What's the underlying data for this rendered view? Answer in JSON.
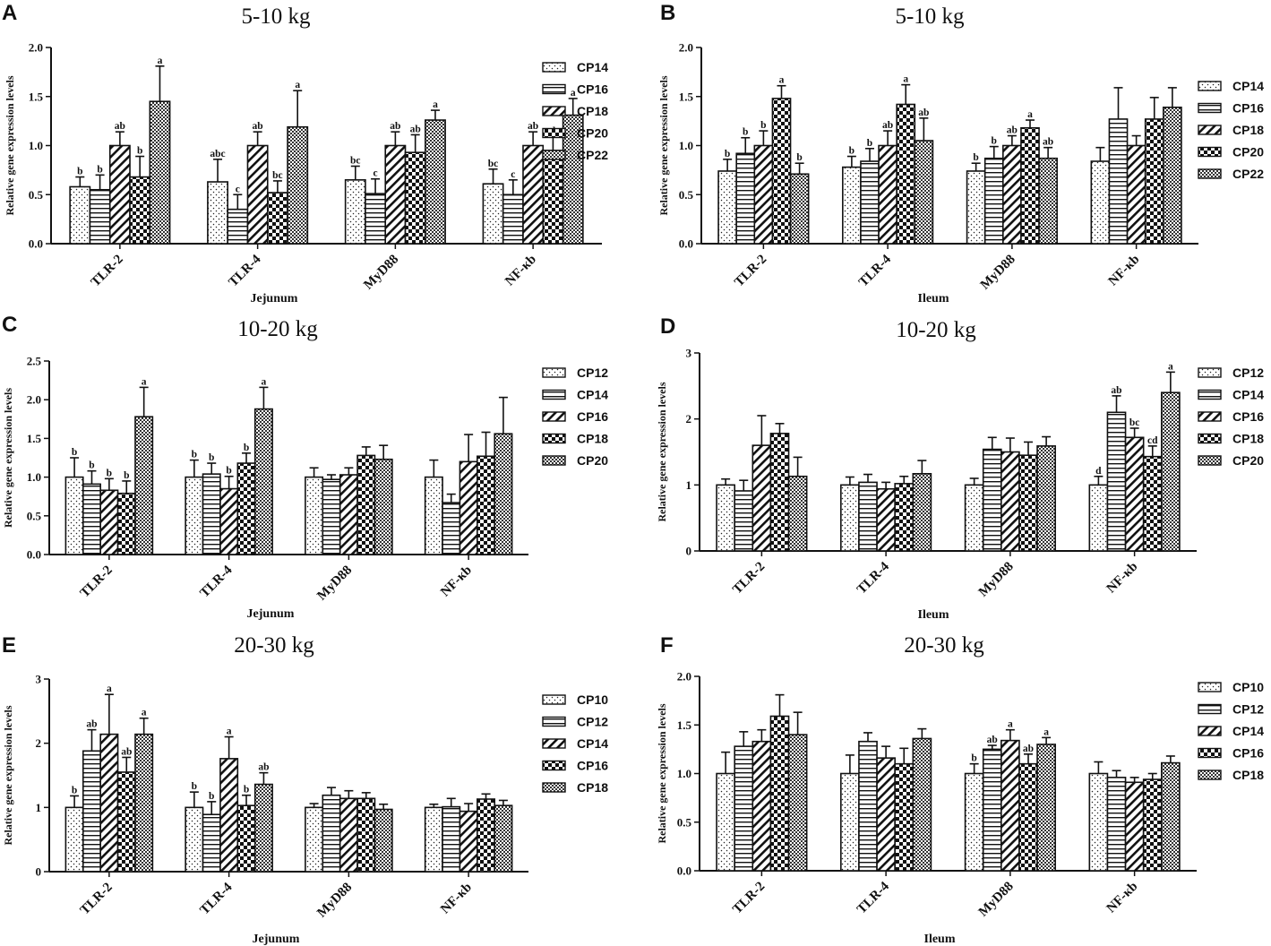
{
  "figure": {
    "chart_data": [
      {
        "panel": "A",
        "type": "bar",
        "title": "5-10 kg",
        "xlabel": "Jejunum",
        "ylabel": "Relative gene expression levels",
        "ylim": [
          0,
          2.0
        ],
        "yticks": [
          "0.0",
          "0.5",
          "1.0",
          "1.5",
          "2.0"
        ],
        "categories": [
          "TLR-2",
          "TLR-4",
          "MyD88",
          "NF-κb"
        ],
        "series": [
          {
            "name": "CP14",
            "pattern": "dots",
            "values": [
              0.58,
              0.63,
              0.65,
              0.61
            ],
            "errors": [
              0.1,
              0.23,
              0.14,
              0.15
            ],
            "letters": [
              "b",
              "abc",
              "bc",
              "bc"
            ]
          },
          {
            "name": "CP16",
            "pattern": "hlines",
            "values": [
              0.55,
              0.35,
              0.51,
              0.5
            ],
            "errors": [
              0.15,
              0.15,
              0.15,
              0.15
            ],
            "letters": [
              "b",
              "c",
              "c",
              "c"
            ]
          },
          {
            "name": "CP18",
            "pattern": "diag",
            "values": [
              1.0,
              1.0,
              1.0,
              1.0
            ],
            "errors": [
              0.14,
              0.14,
              0.14,
              0.14
            ],
            "letters": [
              "ab",
              "ab",
              "ab",
              "ab"
            ]
          },
          {
            "name": "CP20",
            "pattern": "checker",
            "values": [
              0.68,
              0.52,
              0.93,
              0.95
            ],
            "errors": [
              0.21,
              0.12,
              0.18,
              0.14
            ],
            "letters": [
              "b",
              "bc",
              "ab",
              "ab"
            ]
          },
          {
            "name": "CP22",
            "pattern": "finecheck",
            "values": [
              1.45,
              1.19,
              1.26,
              1.31
            ],
            "errors": [
              0.36,
              0.37,
              0.1,
              0.17
            ],
            "letters": [
              "a",
              "a",
              "a",
              "a"
            ]
          }
        ]
      },
      {
        "panel": "B",
        "type": "bar",
        "title": "5-10 kg",
        "xlabel": "Ileum",
        "ylabel": "Relative gene expression levels",
        "ylim": [
          0,
          2.0
        ],
        "yticks": [
          "0.0",
          "0.5",
          "1.0",
          "1.5",
          "2.0"
        ],
        "categories": [
          "TLR-2",
          "TLR-4",
          "MyD88",
          "NF-κb"
        ],
        "series": [
          {
            "name": "CP14",
            "pattern": "dots",
            "values": [
              0.74,
              0.78,
              0.74,
              0.84
            ],
            "errors": [
              0.12,
              0.11,
              0.08,
              0.14
            ],
            "letters": [
              "b",
              "b",
              "b",
              ""
            ]
          },
          {
            "name": "CP16",
            "pattern": "hlines",
            "values": [
              0.92,
              0.84,
              0.87,
              1.27
            ],
            "errors": [
              0.16,
              0.13,
              0.12,
              0.32
            ],
            "letters": [
              "b",
              "b",
              "b",
              ""
            ]
          },
          {
            "name": "CP18",
            "pattern": "diag",
            "values": [
              1.0,
              1.0,
              1.0,
              1.0
            ],
            "errors": [
              0.15,
              0.15,
              0.1,
              0.1
            ],
            "letters": [
              "b",
              "ab",
              "ab",
              ""
            ]
          },
          {
            "name": "CP20",
            "pattern": "checker",
            "values": [
              1.48,
              1.42,
              1.18,
              1.27
            ],
            "errors": [
              0.13,
              0.2,
              0.08,
              0.22
            ],
            "letters": [
              "a",
              "a",
              "a",
              ""
            ]
          },
          {
            "name": "CP22",
            "pattern": "finecheck",
            "values": [
              0.71,
              1.05,
              0.87,
              1.39
            ],
            "errors": [
              0.11,
              0.23,
              0.11,
              0.2
            ],
            "letters": [
              "b",
              "ab",
              "ab",
              ""
            ]
          }
        ]
      },
      {
        "panel": "C",
        "type": "bar",
        "title": "10-20 kg",
        "xlabel": "Jejunum",
        "ylabel": "Relative gene expression levels",
        "ylim": [
          0,
          2.5
        ],
        "yticks": [
          "0.0",
          "0.5",
          "1.0",
          "1.5",
          "2.0",
          "2.5"
        ],
        "categories": [
          "TLR-2",
          "TLR-4",
          "MyD88",
          "NF-κb"
        ],
        "series": [
          {
            "name": "CP12",
            "pattern": "dots",
            "values": [
              1.0,
              1.0,
              1.0,
              1.0
            ],
            "errors": [
              0.25,
              0.22,
              0.12,
              0.22
            ],
            "letters": [
              "b",
              "b",
              "",
              ""
            ]
          },
          {
            "name": "CP14",
            "pattern": "hlines",
            "values": [
              0.91,
              1.04,
              0.97,
              0.67
            ],
            "errors": [
              0.17,
              0.14,
              0.06,
              0.11
            ],
            "letters": [
              "b",
              "b",
              "",
              ""
            ]
          },
          {
            "name": "CP16",
            "pattern": "diag",
            "values": [
              0.83,
              0.85,
              1.03,
              1.2
            ],
            "errors": [
              0.15,
              0.16,
              0.09,
              0.35
            ],
            "letters": [
              "b",
              "b",
              "",
              ""
            ]
          },
          {
            "name": "CP18",
            "pattern": "checker",
            "values": [
              0.79,
              1.18,
              1.28,
              1.27
            ],
            "errors": [
              0.16,
              0.13,
              0.11,
              0.31
            ],
            "letters": [
              "b",
              "b",
              "",
              ""
            ]
          },
          {
            "name": "CP20",
            "pattern": "finecheck",
            "values": [
              1.78,
              1.88,
              1.23,
              1.56
            ],
            "errors": [
              0.38,
              0.28,
              0.18,
              0.47
            ],
            "letters": [
              "a",
              "a",
              "",
              ""
            ]
          }
        ]
      },
      {
        "panel": "D",
        "type": "bar",
        "title": "10-20 kg",
        "xlabel": "Ileum",
        "ylabel": "Relative gene expression levels",
        "ylim": [
          0,
          3
        ],
        "yticks": [
          "0",
          "1",
          "2",
          "3"
        ],
        "categories": [
          "TLR-2",
          "TLR-4",
          "MyD88",
          "NF-κb"
        ],
        "series": [
          {
            "name": "CP12",
            "pattern": "dots",
            "values": [
              1.0,
              1.0,
              1.0,
              1.0
            ],
            "errors": [
              0.09,
              0.12,
              0.1,
              0.13
            ],
            "letters": [
              "",
              "",
              "",
              "d"
            ]
          },
          {
            "name": "CP14",
            "pattern": "hlines",
            "values": [
              0.91,
              1.04,
              1.54,
              2.1
            ],
            "errors": [
              0.16,
              0.12,
              0.18,
              0.25
            ],
            "letters": [
              "",
              "",
              "",
              "ab"
            ]
          },
          {
            "name": "CP16",
            "pattern": "diag",
            "values": [
              1.6,
              0.94,
              1.5,
              1.72
            ],
            "errors": [
              0.45,
              0.1,
              0.21,
              0.14
            ],
            "letters": [
              "",
              "",
              "",
              "bc"
            ]
          },
          {
            "name": "CP18",
            "pattern": "checker",
            "values": [
              1.78,
              1.02,
              1.45,
              1.43
            ],
            "errors": [
              0.15,
              0.11,
              0.2,
              0.16
            ],
            "letters": [
              "",
              "",
              "",
              "cd"
            ]
          },
          {
            "name": "CP20",
            "pattern": "finecheck",
            "values": [
              1.13,
              1.17,
              1.59,
              2.4
            ],
            "errors": [
              0.29,
              0.2,
              0.14,
              0.31
            ],
            "letters": [
              "",
              "",
              "",
              "a"
            ]
          }
        ]
      },
      {
        "panel": "E",
        "type": "bar",
        "title": "20-30 kg",
        "xlabel": "Jejunum",
        "ylabel": "Relative gene expression levels",
        "ylim": [
          0,
          3
        ],
        "yticks": [
          "0",
          "1",
          "2",
          "3"
        ],
        "categories": [
          "TLR-2",
          "TLR-4",
          "MyD88",
          "NF-κb"
        ],
        "series": [
          {
            "name": "CP10",
            "pattern": "dots",
            "values": [
              1.0,
              1.0,
              1.0,
              1.0
            ],
            "errors": [
              0.18,
              0.24,
              0.06,
              0.05
            ],
            "letters": [
              "b",
              "b",
              "",
              ""
            ]
          },
          {
            "name": "CP12",
            "pattern": "hlines",
            "values": [
              1.88,
              0.89,
              1.19,
              1.01
            ],
            "errors": [
              0.33,
              0.2,
              0.12,
              0.13
            ],
            "letters": [
              "ab",
              "b",
              "",
              ""
            ]
          },
          {
            "name": "CP14",
            "pattern": "diag",
            "values": [
              2.14,
              1.76,
              1.14,
              0.94
            ],
            "errors": [
              0.62,
              0.34,
              0.12,
              0.12
            ],
            "letters": [
              "a",
              "a",
              "",
              ""
            ]
          },
          {
            "name": "CP16",
            "pattern": "checker",
            "values": [
              1.55,
              1.03,
              1.14,
              1.13
            ],
            "errors": [
              0.23,
              0.16,
              0.09,
              0.08
            ],
            "letters": [
              "ab",
              "b",
              "",
              ""
            ]
          },
          {
            "name": "CP18",
            "pattern": "finecheck",
            "values": [
              2.14,
              1.36,
              0.97,
              1.03
            ],
            "errors": [
              0.25,
              0.18,
              0.08,
              0.08
            ],
            "letters": [
              "a",
              "ab",
              "",
              ""
            ]
          }
        ]
      },
      {
        "panel": "F",
        "type": "bar",
        "title": "20-30 kg",
        "xlabel": "Ileum",
        "ylabel": "Relative gene expression levels",
        "ylim": [
          0,
          2.0
        ],
        "yticks": [
          "0.0",
          "0.5",
          "1.0",
          "1.5",
          "2.0"
        ],
        "categories": [
          "TLR-2",
          "TLR-4",
          "MyD88",
          "NF-κb"
        ],
        "series": [
          {
            "name": "CP10",
            "pattern": "dots",
            "values": [
              1.0,
              1.0,
              1.0,
              1.0
            ],
            "errors": [
              0.22,
              0.19,
              0.1,
              0.12
            ],
            "letters": [
              "",
              "",
              "b",
              ""
            ]
          },
          {
            "name": "CP12",
            "pattern": "hlines",
            "values": [
              1.28,
              1.33,
              1.25,
              0.96
            ],
            "errors": [
              0.15,
              0.09,
              0.04,
              0.07
            ],
            "letters": [
              "",
              "",
              "ab",
              ""
            ]
          },
          {
            "name": "CP14",
            "pattern": "diag",
            "values": [
              1.33,
              1.16,
              1.34,
              0.91
            ],
            "errors": [
              0.12,
              0.12,
              0.11,
              0.05
            ],
            "letters": [
              "",
              "",
              "a",
              ""
            ]
          },
          {
            "name": "CP16",
            "pattern": "checker",
            "values": [
              1.59,
              1.1,
              1.1,
              0.94
            ],
            "errors": [
              0.22,
              0.16,
              0.1,
              0.06
            ],
            "letters": [
              "",
              "",
              "ab",
              ""
            ]
          },
          {
            "name": "CP18",
            "pattern": "finecheck",
            "values": [
              1.4,
              1.36,
              1.3,
              1.11
            ],
            "errors": [
              0.23,
              0.1,
              0.07,
              0.07
            ],
            "letters": [
              "",
              "",
              "a",
              ""
            ]
          }
        ]
      }
    ]
  }
}
